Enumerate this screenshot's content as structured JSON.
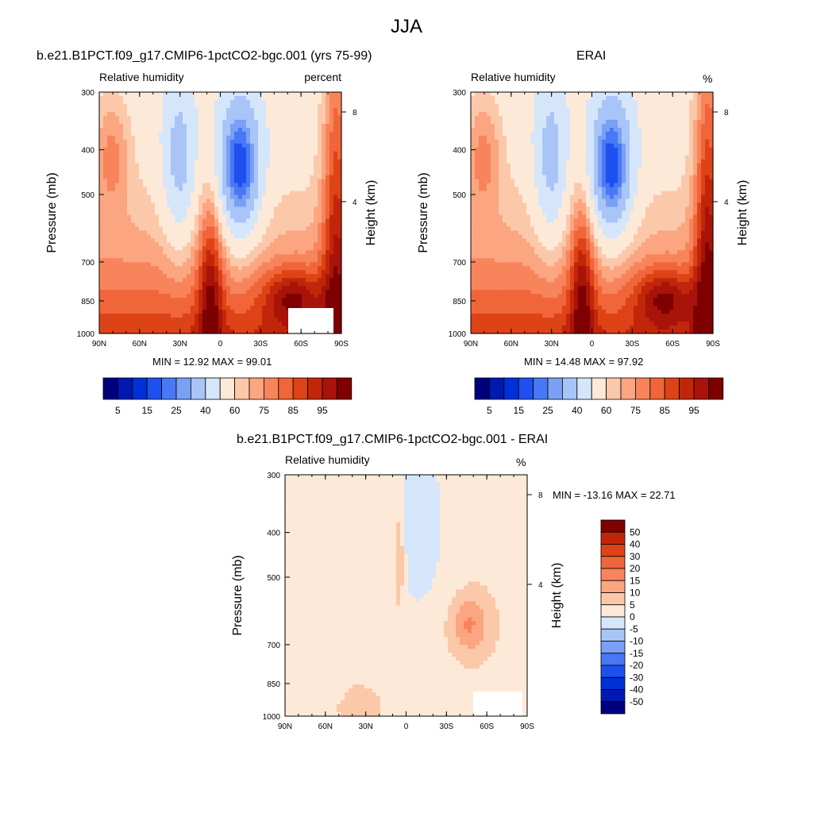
{
  "main_title": "JJA",
  "panels": [
    {
      "title": "b.e21.B1PCT.f09_g17.CMIP6-1pctCO2-bgc.001 (yrs 75-99)",
      "left_label": "Relative humidity",
      "right_label": "percent",
      "ylabel_left": "Pressure (mb)",
      "ylabel_right": "Height (km)",
      "minmax": "MIN = 12.92 MAX = 99.01"
    },
    {
      "title": "ERAI",
      "left_label": "Relative humidity",
      "right_label": "%",
      "ylabel_left": "Pressure (mb)",
      "ylabel_right": "Height (km)",
      "minmax": "MIN = 14.48 MAX = 97.92"
    },
    {
      "title": "b.e21.B1PCT.f09_g17.CMIP6-1pctCO2-bgc.001 - ERAI",
      "left_label": "Relative humidity",
      "right_label": "%",
      "ylabel_left": "Pressure (mb)",
      "ylabel_right": "Height (km)",
      "minmax": "MIN = -13.16  MAX =  22.71"
    }
  ],
  "chart_data": [
    {
      "type": "heatmap",
      "title": "b.e21.B1PCT.f09_g17.CMIP6-1pctCO2-bgc.001 (yrs 75-99)",
      "variable": "Relative humidity",
      "units": "percent",
      "xlabel": "",
      "ylabel": "Pressure (mb)",
      "y2label": "Height (km)",
      "x_ticks": [
        "90N",
        "60N",
        "30N",
        "0",
        "30S",
        "60S",
        "90S"
      ],
      "y_ticks": [
        300,
        400,
        500,
        700,
        850,
        1000
      ],
      "y2_ticks": [
        8,
        4
      ],
      "y_scale": "log",
      "ylim": [
        1000,
        300
      ],
      "min": 12.92,
      "max": 99.01,
      "levels": [
        5,
        10,
        15,
        20,
        25,
        30,
        40,
        50,
        60,
        65,
        70,
        75,
        80,
        85,
        90,
        95
      ],
      "colorbar_labels": [
        "5",
        "15",
        "25",
        "40",
        "60",
        "75",
        "85",
        "95"
      ],
      "colorbar_orientation": "horizontal"
    },
    {
      "type": "heatmap",
      "title": "ERAI",
      "variable": "Relative humidity",
      "units": "%",
      "xlabel": "",
      "ylabel": "Pressure (mb)",
      "y2label": "Height (km)",
      "x_ticks": [
        "90N",
        "60N",
        "30N",
        "0",
        "30S",
        "60S",
        "90S"
      ],
      "y_ticks": [
        300,
        400,
        500,
        700,
        850,
        1000
      ],
      "y2_ticks": [
        8,
        4
      ],
      "y_scale": "log",
      "ylim": [
        1000,
        300
      ],
      "min": 14.48,
      "max": 97.92,
      "levels": [
        5,
        10,
        15,
        20,
        25,
        30,
        40,
        50,
        60,
        65,
        70,
        75,
        80,
        85,
        90,
        95
      ],
      "colorbar_labels": [
        "5",
        "15",
        "25",
        "40",
        "60",
        "75",
        "85",
        "95"
      ],
      "colorbar_orientation": "horizontal"
    },
    {
      "type": "heatmap",
      "title": "b.e21.B1PCT.f09_g17.CMIP6-1pctCO2-bgc.001 - ERAI",
      "variable": "Relative humidity",
      "units": "%",
      "xlabel": "",
      "ylabel": "Pressure (mb)",
      "y2label": "Height (km)",
      "x_ticks": [
        "90N",
        "60N",
        "30N",
        "0",
        "30S",
        "60S",
        "90S"
      ],
      "y_ticks": [
        300,
        400,
        500,
        700,
        850,
        1000
      ],
      "y2_ticks": [
        8,
        4
      ],
      "y_scale": "log",
      "ylim": [
        1000,
        300
      ],
      "min": -13.16,
      "max": 22.71,
      "levels": [
        -50,
        -40,
        -30,
        -20,
        -15,
        -10,
        -5,
        0,
        5,
        10,
        15,
        20,
        30,
        40,
        50
      ],
      "colorbar_labels": [
        "50",
        "40",
        "30",
        "20",
        "15",
        "10",
        "5",
        "0",
        "-5",
        "-10",
        "-15",
        "-20",
        "-30",
        "-40",
        "-50"
      ],
      "colorbar_orientation": "vertical"
    }
  ],
  "colors": {
    "rh_palette": [
      "#00007f",
      "#001ab0",
      "#0030d8",
      "#1e50f0",
      "#4878f5",
      "#7aa0f5",
      "#a9c5f8",
      "#d6e6fa",
      "#fde9d8",
      "#fcc8aa",
      "#fba681",
      "#f8845c",
      "#f06539",
      "#dd4317",
      "#c2260a",
      "#a8130a",
      "#7f0000"
    ],
    "diff_palette": [
      "#00007f",
      "#001ab0",
      "#0030d8",
      "#1e50f0",
      "#4878f5",
      "#7aa0f5",
      "#a9c5f8",
      "#d6e6fa",
      "#fde9d8",
      "#fcc8aa",
      "#fba681",
      "#f8845c",
      "#f06539",
      "#dd4317",
      "#c2260a",
      "#7f0000"
    ]
  }
}
